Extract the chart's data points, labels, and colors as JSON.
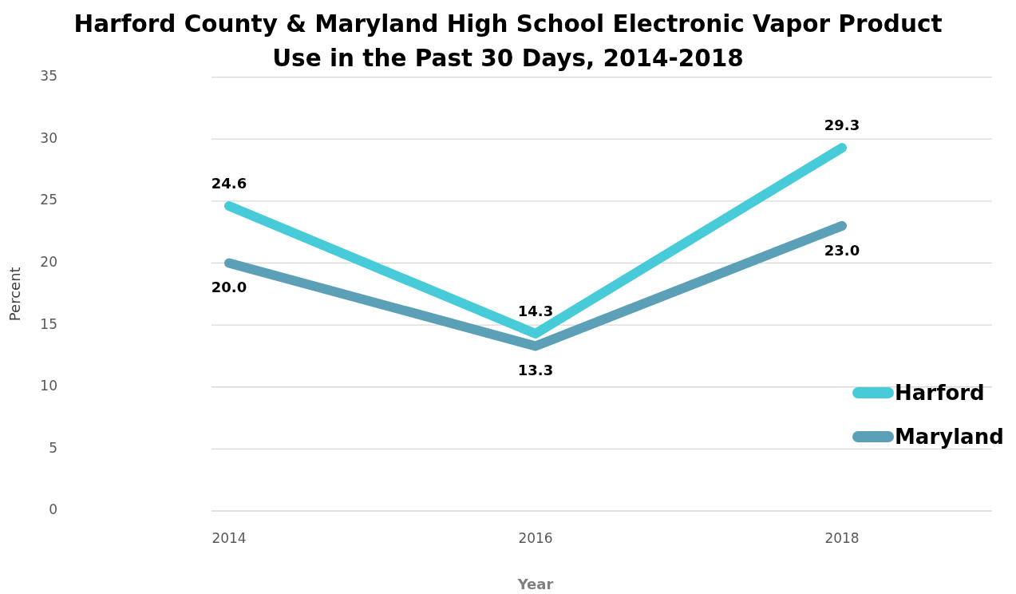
{
  "chart_data": {
    "type": "line",
    "title": "Harford County & Maryland High School Electronic Vapor Product Use in the Past 30 Days, 2014-2018",
    "xlabel": "Year",
    "ylabel": "Percent",
    "categories": [
      "2014",
      "2016",
      "2018"
    ],
    "series": [
      {
        "name": "Harford",
        "color": "#48cbd9",
        "values": [
          24.6,
          14.3,
          29.3
        ],
        "value_labels": [
          "24.6",
          "14.3",
          "29.3"
        ]
      },
      {
        "name": "Maryland",
        "color": "#5ba0b6",
        "values": [
          20.0,
          13.3,
          23.0
        ],
        "value_labels": [
          "20.0",
          "13.3",
          "23.0"
        ]
      }
    ],
    "ylim": [
      0,
      35
    ],
    "yticks": [
      0,
      5,
      10,
      15,
      20,
      25,
      30,
      35
    ],
    "grid": "y",
    "legend": "right",
    "marker": "none"
  }
}
